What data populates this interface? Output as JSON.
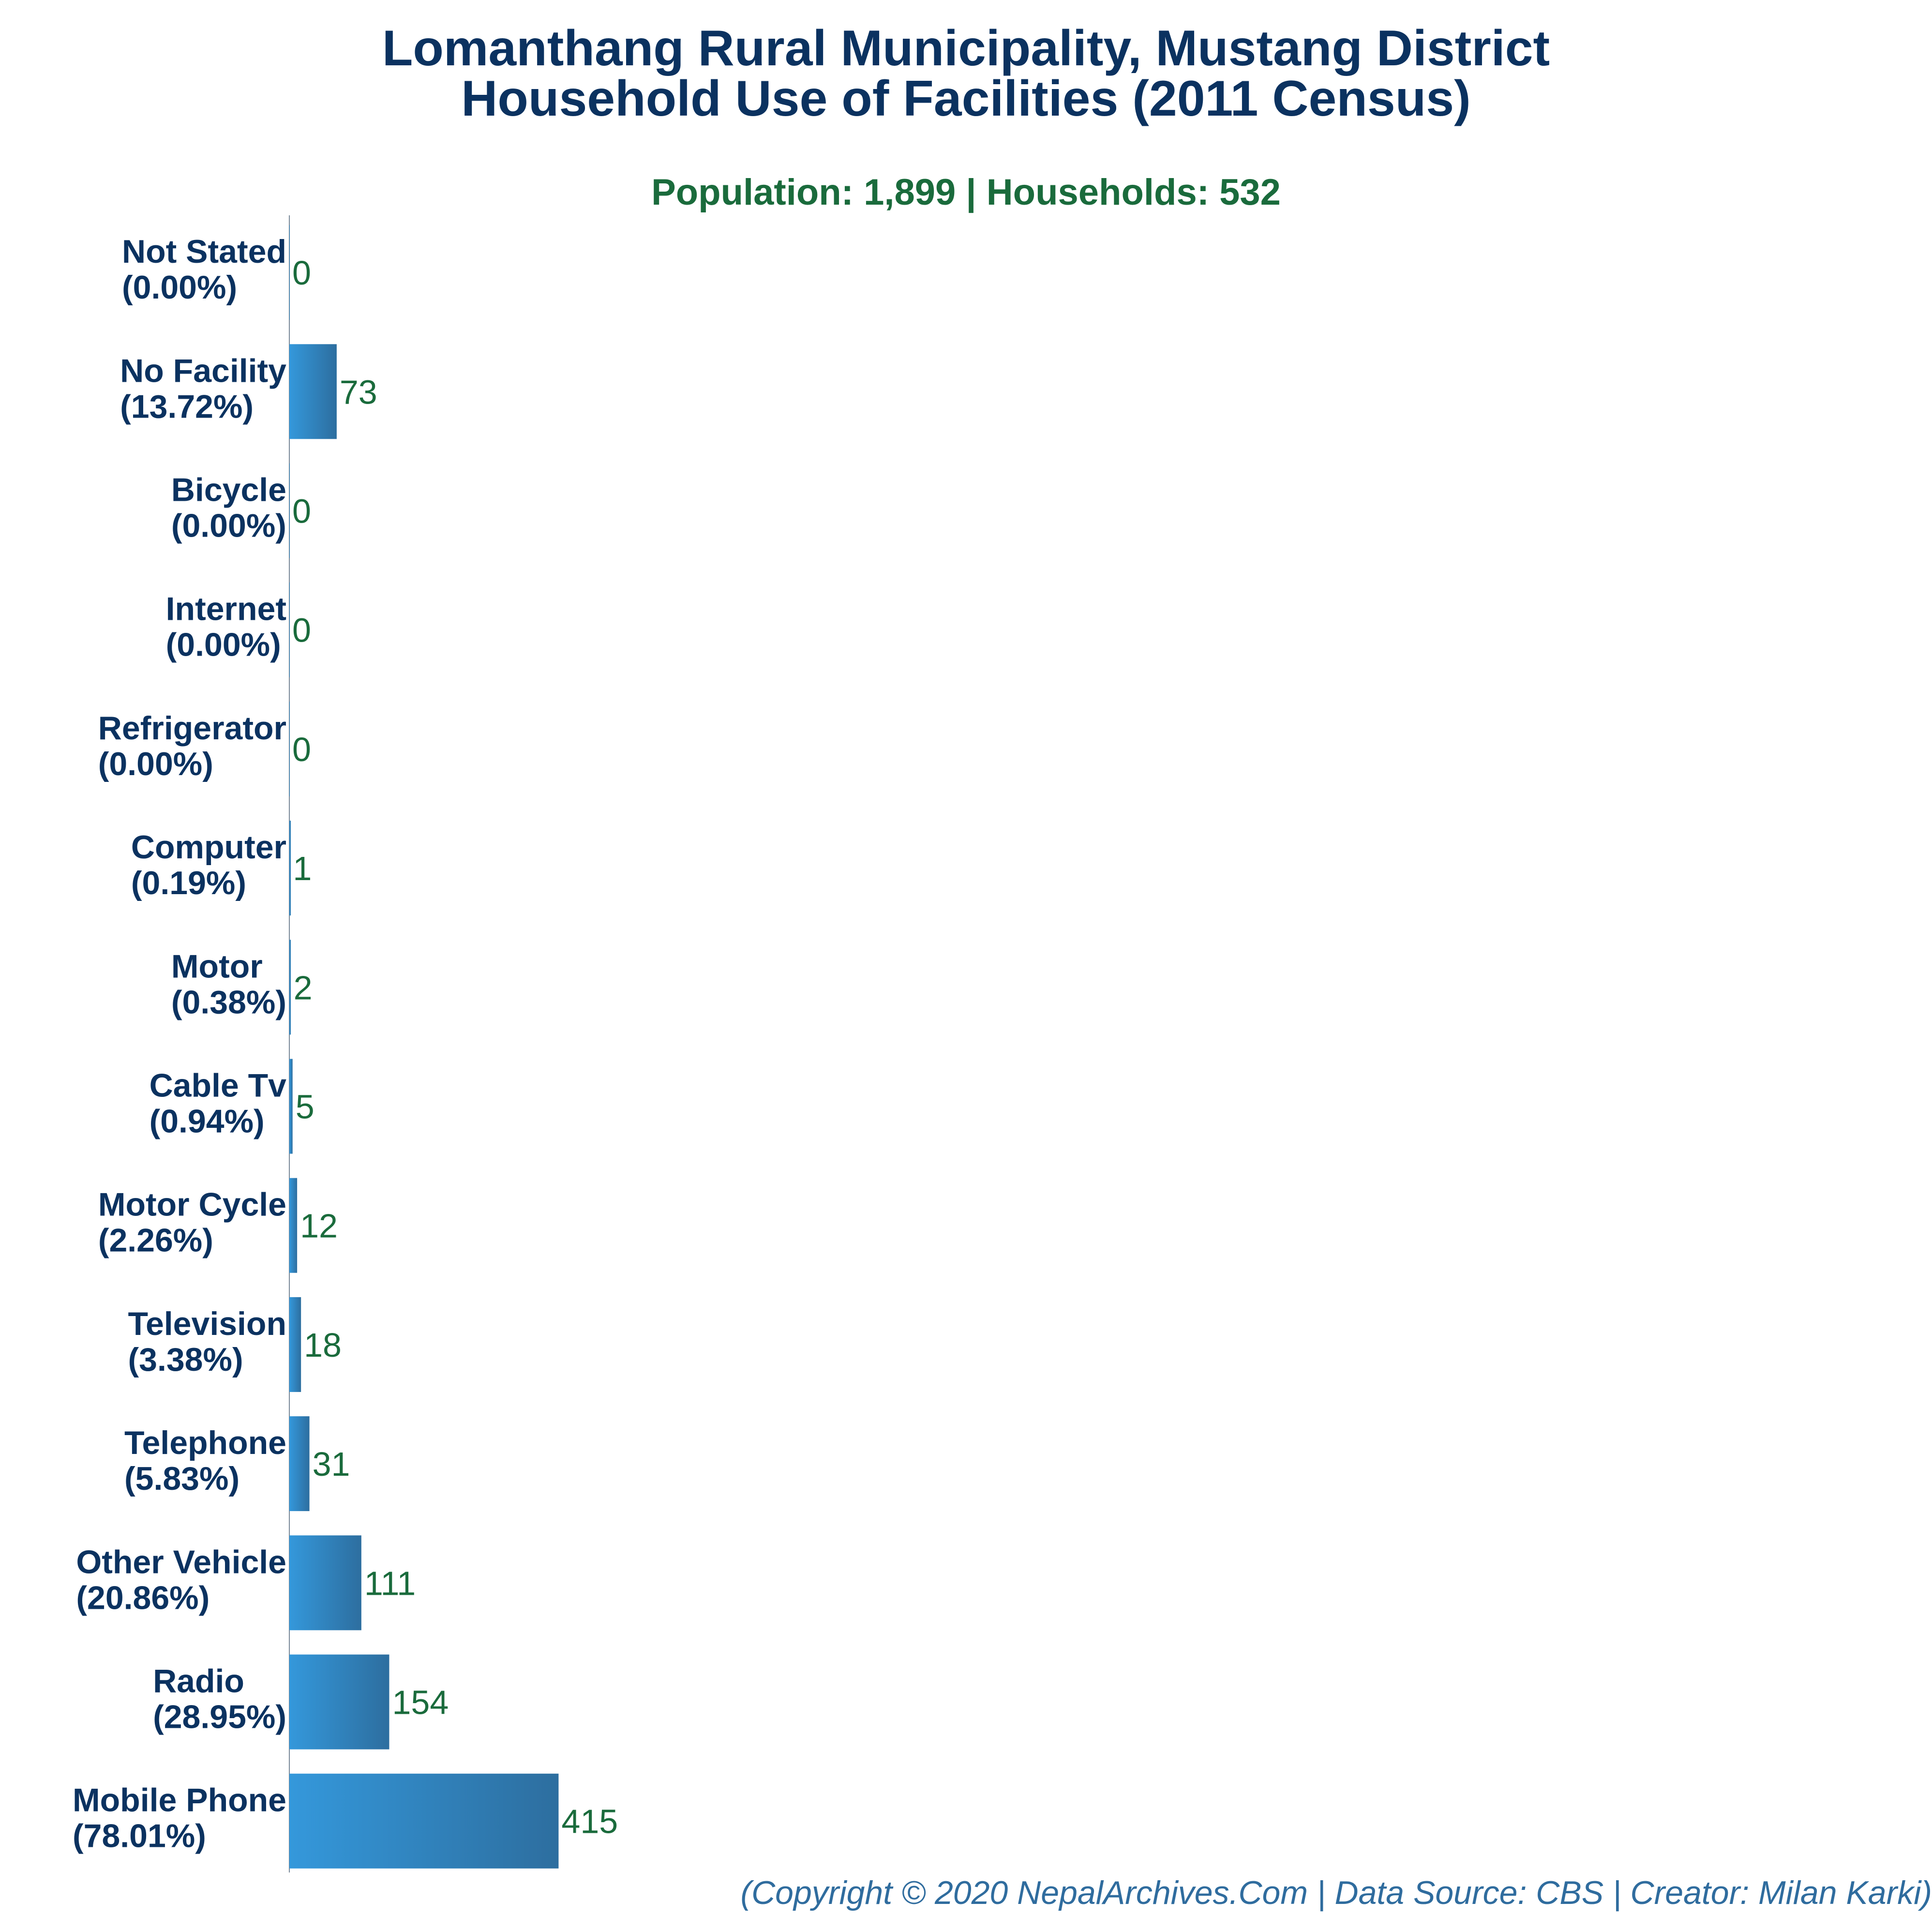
{
  "title_line1": "Lomanthang Rural Municipality, Mustang District",
  "title_line2": "Household Use of Facilities (2011 Census)",
  "subtitle": "Population: 1,899 | Households: 532",
  "footer": "(Copyright © 2020 NepalArchives.Com | Data Source: CBS | Creator: Milan Karki)",
  "colors": {
    "title": "#0b3260",
    "subtitle": "#1a6b3c",
    "category_label": "#0b3260",
    "value_label": "#1a6b3c",
    "bar_light": "#3498db",
    "bar_dark": "#2d6e9f",
    "axis": "#7a8a99",
    "footer": "#2f6c9e"
  },
  "chart_data": {
    "type": "bar",
    "orientation": "horizontal",
    "grid": false,
    "categories": [
      "Not Stated",
      "No Facility",
      "Bicycle",
      "Internet",
      "Refrigerator",
      "Computer",
      "Motor",
      "Cable Tv",
      "Motor Cycle",
      "Television",
      "Telephone",
      "Other Vehicle",
      "Radio",
      "Mobile Phone"
    ],
    "percent_labels": [
      "(0.00%)",
      "(13.72%)",
      "(0.00%)",
      "(0.00%)",
      "(0.00%)",
      "(0.19%)",
      "(0.38%)",
      "(0.94%)",
      "(2.26%)",
      "(3.38%)",
      "(5.83%)",
      "(20.86%)",
      "(28.95%)",
      "(78.01%)"
    ],
    "values": [
      0,
      73,
      0,
      0,
      0,
      1,
      2,
      5,
      12,
      18,
      31,
      111,
      154,
      415
    ],
    "xlim": [
      0,
      2060
    ]
  }
}
